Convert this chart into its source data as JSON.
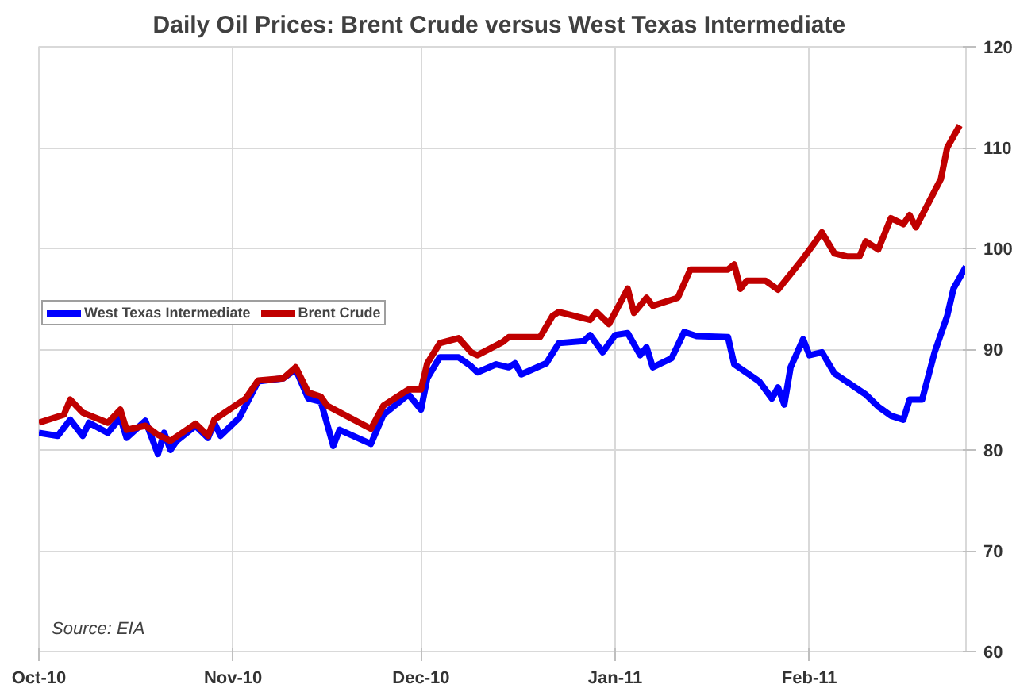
{
  "chart_data": {
    "type": "line",
    "title": "Daily Oil Prices:  Brent Crude versus West Texas Intermediate",
    "xlim": [
      "2010-10-01",
      "2011-02-26"
    ],
    "xticks": [
      {
        "value": "2010-10-01",
        "label": "Oct-10"
      },
      {
        "value": "2010-11-01",
        "label": "Nov-10"
      },
      {
        "value": "2010-12-01",
        "label": "Dec-10"
      },
      {
        "value": "2011-01-01",
        "label": "Jan-11"
      },
      {
        "value": "2011-02-01",
        "label": "Feb-11"
      }
    ],
    "ylim": [
      60,
      120
    ],
    "yticks": [
      60,
      70,
      80,
      90,
      100,
      110,
      120
    ],
    "grid": true,
    "legend": "left",
    "line_style": "solid",
    "annotations": [
      "Source: EIA"
    ],
    "series": [
      {
        "name": "West Texas Intermediate",
        "color": "#0000ff",
        "x": [
          "2010-10-01",
          "2010-10-04",
          "2010-10-06",
          "2010-10-08",
          "2010-10-09",
          "2010-10-12",
          "2010-10-14",
          "2010-10-15",
          "2010-10-18",
          "2010-10-20",
          "2010-10-21",
          "2010-10-22",
          "2010-10-23",
          "2010-10-26",
          "2010-10-28",
          "2010-10-29",
          "2010-10-30",
          "2010-11-02",
          "2010-11-05",
          "2010-11-09",
          "2010-11-11",
          "2010-11-13",
          "2010-11-15",
          "2010-11-17",
          "2010-11-18",
          "2010-11-23",
          "2010-11-25",
          "2010-11-29",
          "2010-12-01",
          "2010-12-02",
          "2010-12-04",
          "2010-12-07",
          "2010-12-09",
          "2010-12-10",
          "2010-12-13",
          "2010-12-15",
          "2010-12-16",
          "2010-12-17",
          "2010-12-21",
          "2010-12-23",
          "2010-12-27",
          "2010-12-28",
          "2010-12-30",
          "2011-01-01",
          "2011-01-03",
          "2011-01-05",
          "2011-01-06",
          "2011-01-07",
          "2011-01-10",
          "2011-01-12",
          "2011-01-14",
          "2011-01-19",
          "2011-01-20",
          "2011-01-24",
          "2011-01-26",
          "2011-01-27",
          "2011-01-28",
          "2011-01-29",
          "2011-01-31",
          "2011-02-01",
          "2011-02-03",
          "2011-02-05",
          "2011-02-10",
          "2011-02-12",
          "2011-02-14",
          "2011-02-16",
          "2011-02-17",
          "2011-02-19",
          "2011-02-21",
          "2011-02-23",
          "2011-02-24",
          "2011-02-26"
        ],
        "values": [
          81.7,
          81.4,
          83.0,
          81.4,
          82.7,
          81.7,
          83.2,
          81.2,
          82.9,
          79.6,
          81.7,
          80.0,
          80.9,
          82.4,
          81.2,
          82.7,
          81.4,
          83.2,
          86.8,
          87.1,
          88.0,
          85.1,
          84.8,
          80.4,
          82.0,
          80.6,
          83.5,
          85.5,
          84.0,
          87.1,
          89.2,
          89.2,
          88.3,
          87.7,
          88.5,
          88.2,
          88.6,
          87.5,
          88.6,
          90.6,
          90.8,
          91.4,
          89.7,
          91.4,
          91.6,
          89.4,
          90.2,
          88.2,
          89.1,
          91.7,
          91.3,
          91.2,
          88.5,
          86.8,
          85.1,
          86.2,
          84.5,
          88.2,
          91.0,
          89.4,
          89.7,
          87.6,
          85.5,
          84.3,
          83.4,
          83.0,
          85.0,
          85.0,
          89.7,
          93.3,
          96.0,
          98.2
        ]
      },
      {
        "name": "Brent Crude",
        "color": "#c00000",
        "x": [
          "2010-10-01",
          "2010-10-05",
          "2010-10-06",
          "2010-10-08",
          "2010-10-12",
          "2010-10-14",
          "2010-10-15",
          "2010-10-18",
          "2010-10-20",
          "2010-10-22",
          "2010-10-26",
          "2010-10-28",
          "2010-10-29",
          "2010-11-03",
          "2010-11-05",
          "2010-11-09",
          "2010-11-11",
          "2010-11-13",
          "2010-11-15",
          "2010-11-16",
          "2010-11-23",
          "2010-11-25",
          "2010-11-29",
          "2010-12-01",
          "2010-12-02",
          "2010-12-04",
          "2010-12-07",
          "2010-12-09",
          "2010-12-10",
          "2010-12-14",
          "2010-12-15",
          "2010-12-20",
          "2010-12-22",
          "2010-12-23",
          "2010-12-28",
          "2010-12-29",
          "2010-12-31",
          "2011-01-03",
          "2011-01-04",
          "2011-01-06",
          "2011-01-07",
          "2011-01-11",
          "2011-01-13",
          "2011-01-19",
          "2011-01-20",
          "2011-01-21",
          "2011-01-22",
          "2011-01-25",
          "2011-01-27",
          "2011-01-31",
          "2011-02-02",
          "2011-02-03",
          "2011-02-05",
          "2011-02-07",
          "2011-02-09",
          "2011-02-10",
          "2011-02-12",
          "2011-02-14",
          "2011-02-16",
          "2011-02-17",
          "2011-02-18",
          "2011-02-22",
          "2011-02-23",
          "2011-02-25"
        ],
        "values": [
          82.7,
          83.5,
          85.0,
          83.7,
          82.7,
          84.0,
          82.0,
          82.4,
          81.5,
          80.9,
          82.6,
          81.4,
          83.0,
          85.1,
          86.9,
          87.1,
          88.2,
          85.7,
          85.3,
          84.4,
          82.1,
          84.4,
          86.0,
          86.0,
          88.6,
          90.6,
          91.1,
          89.7,
          89.4,
          90.7,
          91.2,
          91.2,
          93.3,
          93.7,
          92.9,
          93.7,
          92.5,
          96.0,
          93.6,
          95.1,
          94.3,
          95.1,
          97.9,
          97.9,
          98.4,
          96.0,
          96.8,
          96.8,
          95.9,
          99.0,
          100.7,
          101.6,
          99.5,
          99.2,
          99.2,
          100.7,
          99.9,
          103.0,
          102.4,
          103.3,
          102.1,
          106.9,
          110.0,
          112.2
        ]
      }
    ]
  }
}
